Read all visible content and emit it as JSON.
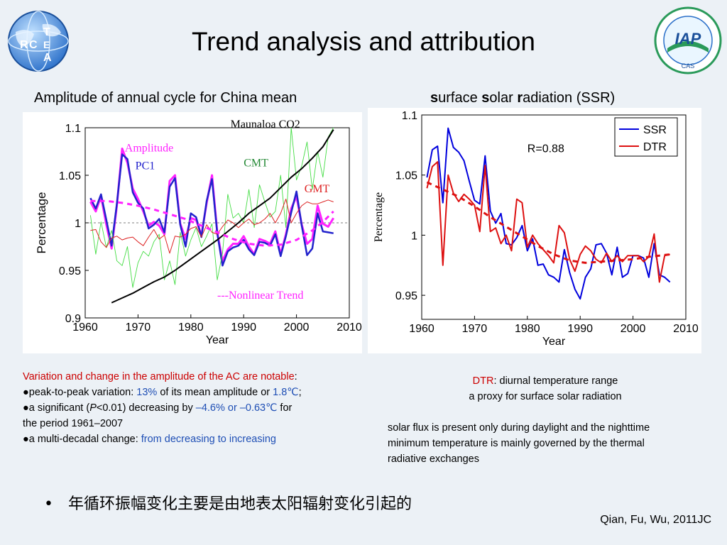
{
  "slide": {
    "title": "Trend analysis and attribution",
    "logo_left_text": [
      "R",
      "C",
      "T",
      "E",
      "A"
    ],
    "logo_right_text": "IAP",
    "logo_right_ring": "CAS",
    "subhead_left": "Amplitude of annual cycle for China mean",
    "subhead_right_parts": [
      "s",
      "urface ",
      "s",
      "olar ",
      "r",
      "adiation (SSR)"
    ]
  },
  "notes_left": {
    "line1": "Variation and change in the amplitude of the AC are notable",
    "line1_colon": ":",
    "b1_prefix": "peak-to-peak variation: ",
    "b1_val1": "13%",
    "b1_mid": " of its mean amplitude or ",
    "b1_val2": "1.8℃",
    "b1_end": ";",
    "b2_prefix": "a significant (",
    "b2_p": "P",
    "b2_pval": "<0.01",
    "b2_mid": ") decreasing by ",
    "b2_val": "–4.6% or –0.63℃",
    "b2_end": " for",
    "b2_line2": "the period 1961–2007",
    "b3_prefix": "a multi-decadal change: ",
    "b3_val": "from decreasing to increasing"
  },
  "notes_right": {
    "dtr_label": "DTR",
    "dtr_def": ": diurnal temperature range",
    "dtr_line2": "a proxy for surface solar radiation",
    "para": [
      "solar flux is present only during daylight and the nighttime",
      "minimum temperature is mainly governed by the thermal",
      "radiative exchanges"
    ]
  },
  "bullet": {
    "marker": "•",
    "text": "年循环振幅变化主要是由地表太阳辐射变化引起的"
  },
  "citation": "Qian, Fu, Wu, 2011JC",
  "chart_data": [
    {
      "type": "line",
      "xlabel": "Year",
      "ylabel": "Percentage",
      "xlim": [
        1960,
        2010
      ],
      "ylim": [
        0.9,
        1.1
      ],
      "xticks": [
        "1960",
        "1970",
        "1980",
        "1990",
        "2000",
        "2010"
      ],
      "yticks": [
        "0.9",
        "0.95",
        "1",
        "1.05",
        "1.1"
      ],
      "reference_line_y": 1.0,
      "annotations": [
        "Maunaloa CO2",
        "Amplitude",
        "PC1",
        "CMT",
        "GMT",
        "---Nonlinear Trend"
      ],
      "series": [
        {
          "name": "Amplitude",
          "color": "#ff22ff",
          "x": [
            1961,
            1962,
            1963,
            1964,
            1965,
            1966,
            1967,
            1968,
            1969,
            1970,
            1971,
            1972,
            1973,
            1974,
            1975,
            1976,
            1977,
            1978,
            1979,
            1980,
            1981,
            1982,
            1983,
            1984,
            1985,
            1986,
            1987,
            1988,
            1989,
            1990,
            1991,
            1992,
            1993,
            1994,
            1995,
            1996,
            1997,
            1998,
            1999,
            2000,
            2001,
            2002,
            2003,
            2004,
            2005,
            2006,
            2007
          ],
          "y": [
            1.022,
            1.012,
            1.028,
            0.998,
            0.973,
            1.018,
            1.078,
            1.063,
            1.036,
            1.025,
            1.012,
            0.997,
            1.001,
            0.997,
            0.988,
            1.044,
            1.05,
            0.999,
            0.983,
            1.005,
            1.003,
            0.987,
            1.021,
            1.05,
            0.99,
            0.96,
            0.972,
            0.978,
            0.978,
            0.986,
            0.975,
            0.967,
            0.983,
            0.981,
            0.978,
            0.991,
            0.967,
            0.988,
            1.015,
            1.028,
            0.998,
            0.978,
            0.983,
            1.018,
            0.999,
            0.996,
            1.005
          ]
        },
        {
          "name": "PC1",
          "color": "#2222cc",
          "x": [
            1961,
            1962,
            1963,
            1964,
            1965,
            1966,
            1967,
            1968,
            1969,
            1970,
            1971,
            1972,
            1973,
            1974,
            1975,
            1976,
            1977,
            1978,
            1979,
            1980,
            1981,
            1982,
            1983,
            1984,
            1985,
            1986,
            1987,
            1988,
            1989,
            1990,
            1991,
            1992,
            1993,
            1994,
            1995,
            1996,
            1997,
            1998,
            1999,
            2000,
            2001,
            2002,
            2003,
            2004,
            2005,
            2006,
            2007
          ],
          "y": [
            1.026,
            1.015,
            1.03,
            1.003,
            0.976,
            1.02,
            1.072,
            1.067,
            1.032,
            1.021,
            1.015,
            0.994,
            0.998,
            1.004,
            0.99,
            1.038,
            1.047,
            0.998,
            0.975,
            1.01,
            1.006,
            0.985,
            1.023,
            1.046,
            0.989,
            0.955,
            0.97,
            0.974,
            0.976,
            0.982,
            0.972,
            0.966,
            0.98,
            0.979,
            0.976,
            0.988,
            0.965,
            0.986,
            1.011,
            1.033,
            0.997,
            0.966,
            0.973,
            1.01,
            0.991,
            0.99,
            0.989
          ]
        },
        {
          "name": "CMT",
          "color": "#44dd44",
          "x": [
            1961,
            1962,
            1963,
            1964,
            1965,
            1966,
            1967,
            1968,
            1969,
            1970,
            1971,
            1972,
            1973,
            1974,
            1975,
            1976,
            1977,
            1978,
            1979,
            1980,
            1981,
            1982,
            1983,
            1984,
            1985,
            1986,
            1987,
            1988,
            1989,
            1990,
            1991,
            1992,
            1993,
            1994,
            1995,
            1996,
            1997,
            1998,
            1999,
            2000,
            2001,
            2002,
            2003,
            2004,
            2005,
            2006,
            2007
          ],
          "y": [
            1.008,
            0.967,
            1.001,
            0.974,
            0.992,
            0.96,
            0.955,
            0.975,
            0.932,
            0.958,
            0.97,
            0.965,
            0.98,
            0.988,
            0.94,
            0.96,
            0.935,
            0.99,
            0.965,
            0.982,
            0.995,
            0.975,
            0.986,
            0.999,
            0.94,
            0.968,
            1.03,
            1.005,
            1.01,
            1.0,
            1.035,
            0.995,
            1.04,
            1.022,
            1.006,
            1.012,
            1.05,
            0.995,
            1.1,
            1.045,
            1.06,
            1.085,
            1.035,
            1.075,
            1.048,
            1.09,
            1.1
          ]
        },
        {
          "name": "GMT",
          "color": "#dd2222",
          "x": [
            1961,
            1962,
            1963,
            1964,
            1965,
            1966,
            1967,
            1968,
            1969,
            1970,
            1971,
            1972,
            1973,
            1974,
            1975,
            1976,
            1977,
            1978,
            1979,
            1980,
            1981,
            1982,
            1983,
            1984,
            1985,
            1986,
            1987,
            1988,
            1989,
            1990,
            1991,
            1992,
            1993,
            1994,
            1995,
            1996,
            1997,
            1998,
            1999,
            2000,
            2001,
            2002,
            2003,
            2004,
            2005,
            2006,
            2007
          ],
          "y": [
            0.992,
            0.993,
            0.98,
            0.974,
            0.984,
            0.986,
            0.982,
            0.984,
            0.985,
            0.98,
            0.976,
            0.985,
            0.993,
            0.983,
            0.987,
            0.968,
            0.986,
            0.985,
            0.988,
            0.994,
            0.996,
            0.985,
            0.998,
            0.99,
            0.988,
            0.996,
            1.003,
            1.0,
            0.995,
            1.0,
            1.004,
            0.998,
            1.0,
            1.004,
            1.01,
            1.0,
            1.01,
            1.025,
            1.0,
            1.01,
            1.018,
            1.022,
            1.02,
            1.02,
            1.022,
            1.024,
            1.022
          ]
        },
        {
          "name": "Maunaloa CO2",
          "color": "#000000",
          "x": [
            1965,
            1967,
            1969,
            1971,
            1973,
            1975,
            1977,
            1979,
            1981,
            1983,
            1985,
            1987,
            1989,
            1991,
            1993,
            1995,
            1997,
            1999,
            2001,
            2003,
            2005,
            2007
          ],
          "y": [
            0.916,
            0.921,
            0.926,
            0.932,
            0.938,
            0.943,
            0.95,
            0.958,
            0.966,
            0.974,
            0.982,
            0.991,
            1.0,
            1.01,
            1.018,
            1.026,
            1.037,
            1.048,
            1.057,
            1.068,
            1.08,
            1.098
          ]
        },
        {
          "name": "---Nonlinear Trend",
          "color": "#ff22ff",
          "dashed": true,
          "x": [
            1961,
            1964,
            1967,
            1970,
            1973,
            1976,
            1979,
            1982,
            1985,
            1988,
            1991,
            1994,
            1997,
            2000,
            2003,
            2005,
            2007
          ],
          "y": [
            1.023,
            1.023,
            1.021,
            1.018,
            1.014,
            1.009,
            1.004,
            0.997,
            0.99,
            0.983,
            0.978,
            0.976,
            0.977,
            0.982,
            0.992,
            1.001,
            1.012
          ]
        }
      ]
    },
    {
      "type": "line",
      "xlabel": "Year",
      "ylabel": "Percentage",
      "xlim": [
        1960,
        2010
      ],
      "ylim": [
        0.93,
        1.1
      ],
      "xticks": [
        "1960",
        "1970",
        "1980",
        "1990",
        "2000",
        "2010"
      ],
      "yticks": [
        "0.95",
        "1",
        "1.05",
        "1.1"
      ],
      "legend": "top-right",
      "annotation": "R=0.88",
      "series": [
        {
          "name": "SSR",
          "color": "#0000dd",
          "x": [
            1961,
            1962,
            1963,
            1964,
            1965,
            1966,
            1967,
            1968,
            1969,
            1970,
            1971,
            1972,
            1973,
            1974,
            1975,
            1976,
            1977,
            1978,
            1979,
            1980,
            1981,
            1982,
            1983,
            1984,
            1985,
            1986,
            1987,
            1988,
            1989,
            1990,
            1991,
            1992,
            1993,
            1994,
            1995,
            1996,
            1997,
            1998,
            1999,
            2000,
            2001,
            2002,
            2003,
            2004,
            2005,
            2006,
            2007
          ],
          "y": [
            1.048,
            1.071,
            1.074,
            1.027,
            1.089,
            1.073,
            1.069,
            1.062,
            1.045,
            1.029,
            1.026,
            1.066,
            1.02,
            1.01,
            1.018,
            0.993,
            0.992,
            0.998,
            1.008,
            0.987,
            0.997,
            0.975,
            0.976,
            0.967,
            0.965,
            0.961,
            0.988,
            0.969,
            0.955,
            0.947,
            0.965,
            0.972,
            0.992,
            0.993,
            0.985,
            0.967,
            0.99,
            0.965,
            0.968,
            0.983,
            0.983,
            0.981,
            0.965,
            0.993,
            0.967,
            0.965,
            0.961
          ]
        },
        {
          "name": "DTR",
          "color": "#dd1111",
          "x": [
            1961,
            1962,
            1963,
            1964,
            1965,
            1966,
            1967,
            1968,
            1969,
            1970,
            1971,
            1972,
            1973,
            1974,
            1975,
            1976,
            1977,
            1978,
            1979,
            1980,
            1981,
            1982,
            1983,
            1984,
            1985,
            1986,
            1987,
            1988,
            1989,
            1990,
            1991,
            1992,
            1993,
            1994,
            1995,
            1996,
            1997,
            1998,
            1999,
            2000,
            2001,
            2002,
            2003,
            2004,
            2005,
            2006,
            2007
          ],
          "y": [
            1.039,
            1.057,
            1.061,
            0.975,
            1.05,
            1.035,
            1.028,
            1.034,
            1.03,
            1.025,
            1.003,
            1.058,
            1.003,
            1.006,
            0.993,
            1.0,
            0.987,
            1.03,
            1.027,
            0.99,
            1.0,
            0.993,
            0.988,
            0.983,
            0.977,
            1.008,
            1.002,
            0.98,
            0.97,
            0.984,
            0.991,
            0.987,
            0.98,
            0.977,
            0.985,
            0.978,
            0.983,
            0.978,
            0.983,
            0.983,
            0.983,
            0.978,
            0.982,
            1.001,
            0.961,
            0.983,
            0.984
          ]
        },
        {
          "name": "DTR trend",
          "color": "#dd1111",
          "dashed": true,
          "x": [
            1961,
            1964,
            1967,
            1970,
            1973,
            1976,
            1979,
            1982,
            1985,
            1988,
            1991,
            1994,
            1997,
            2000,
            2003,
            2007
          ],
          "y": [
            1.044,
            1.038,
            1.032,
            1.024,
            1.015,
            1.007,
            0.999,
            0.991,
            0.984,
            0.979,
            0.977,
            0.978,
            0.979,
            0.98,
            0.982,
            0.984
          ]
        }
      ]
    }
  ]
}
